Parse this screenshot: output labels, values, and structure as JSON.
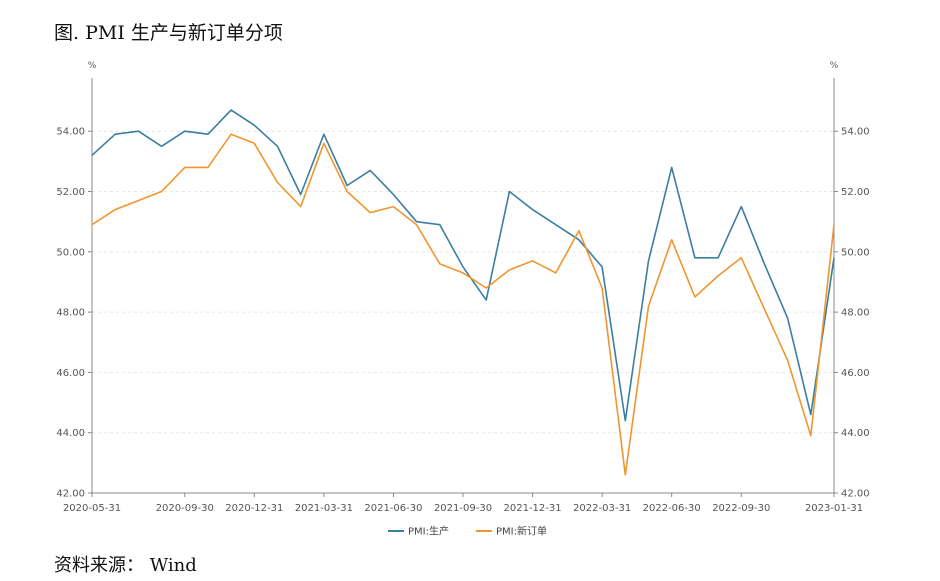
{
  "figure": {
    "title": "图. PMI 生产与新订单分项",
    "source": "资料来源： Wind"
  },
  "chart_data": {
    "type": "line",
    "title": "图. PMI 生产与新订单分项",
    "left_unit": "%",
    "right_unit": "%",
    "xlabel": "",
    "ylabel": "",
    "ylim": [
      42,
      55.5
    ],
    "y_ticks": [
      42,
      44,
      46,
      48,
      50,
      52,
      54
    ],
    "y_tick_labels": [
      "42.00",
      "44.00",
      "46.00",
      "48.00",
      "50.00",
      "52.00",
      "54.00"
    ],
    "x_tick_labels": [
      "2020-05-31",
      "2020-09-30",
      "2020-12-31",
      "2021-03-31",
      "2021-06-30",
      "2021-09-30",
      "2021-12-31",
      "2022-03-31",
      "2022-06-30",
      "2022-09-30",
      "2023-01-31"
    ],
    "x": [
      "2020-05-31",
      "2020-06-30",
      "2020-07-31",
      "2020-08-31",
      "2020-09-30",
      "2020-10-31",
      "2020-11-30",
      "2020-12-31",
      "2021-01-31",
      "2021-02-28",
      "2021-03-31",
      "2021-04-30",
      "2021-05-31",
      "2021-06-30",
      "2021-07-31",
      "2021-08-31",
      "2021-09-30",
      "2021-10-31",
      "2021-11-30",
      "2021-12-31",
      "2022-01-31",
      "2022-02-28",
      "2022-03-31",
      "2022-04-30",
      "2022-05-31",
      "2022-06-30",
      "2022-07-31",
      "2022-08-31",
      "2022-09-30",
      "2022-10-31",
      "2022-11-30",
      "2022-12-31",
      "2023-01-31"
    ],
    "series": [
      {
        "name": "PMI:生产",
        "color": "#3b7ea1",
        "values": [
          53.2,
          53.9,
          54.0,
          53.5,
          54.0,
          53.9,
          54.7,
          54.2,
          53.5,
          51.9,
          53.9,
          52.2,
          52.7,
          51.9,
          51.0,
          50.9,
          49.5,
          48.4,
          52.0,
          51.4,
          50.9,
          50.4,
          49.5,
          44.4,
          49.7,
          52.8,
          49.8,
          49.8,
          51.5,
          49.6,
          47.8,
          44.6,
          49.8
        ]
      },
      {
        "name": "PMI:新订单",
        "color": "#f0962e",
        "values": [
          50.9,
          51.4,
          51.7,
          52.0,
          52.8,
          52.8,
          53.9,
          53.6,
          52.3,
          51.5,
          53.6,
          52.0,
          51.3,
          51.5,
          50.9,
          49.6,
          49.3,
          48.8,
          49.4,
          49.7,
          49.3,
          50.7,
          48.8,
          42.6,
          48.2,
          50.4,
          48.5,
          49.2,
          49.8,
          48.1,
          46.4,
          43.9,
          50.9
        ]
      }
    ],
    "grid": true,
    "legend_position": "bottom-center"
  }
}
